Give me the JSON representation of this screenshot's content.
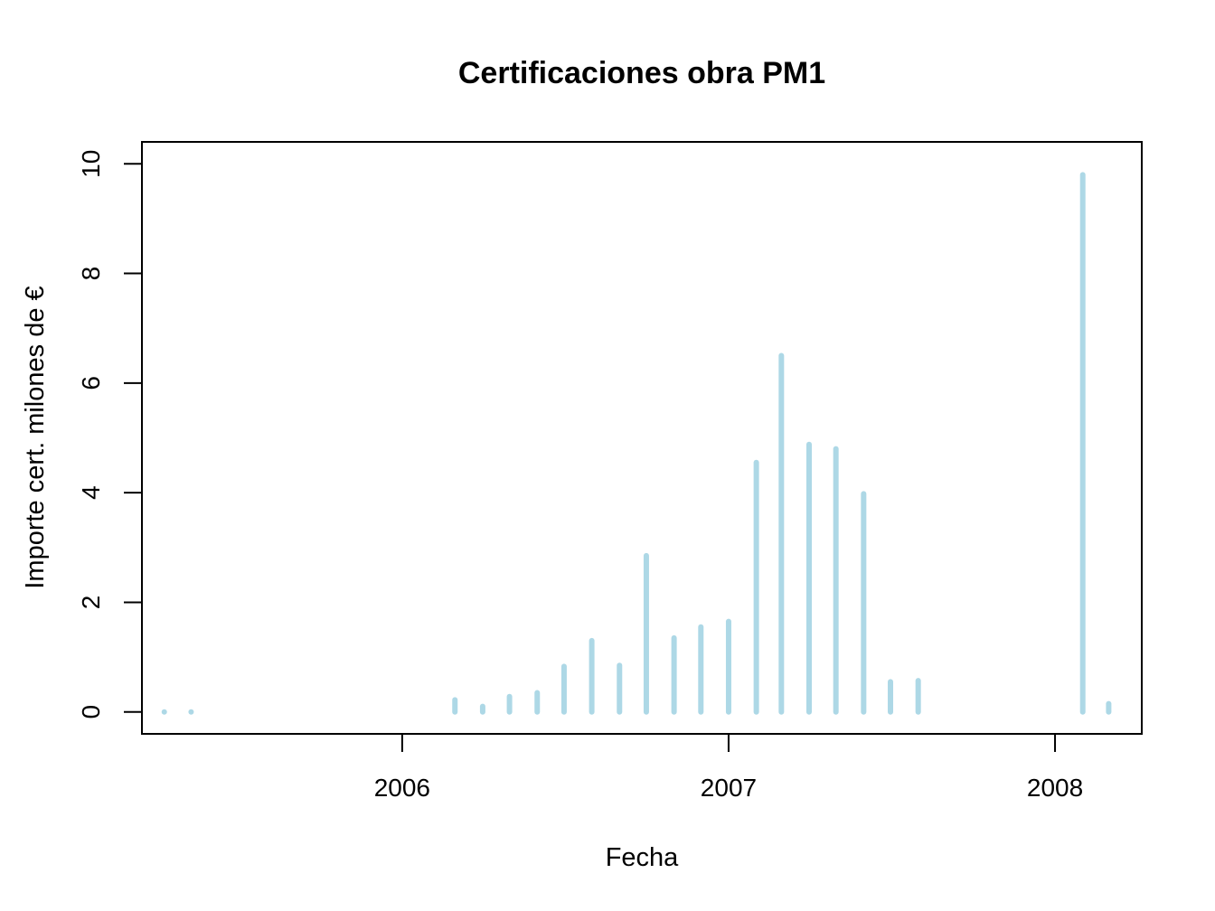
{
  "chart_data": {
    "type": "bar",
    "title": "Certificaciones obra PM1",
    "xlabel": "Fecha",
    "ylabel": "Importe cert. milones de €",
    "x_scale": "date",
    "xlim": [
      "2005-03-16",
      "2008-04-07"
    ],
    "ylim": [
      -0.4,
      10.4
    ],
    "x_ticks": [
      "2006-01-01",
      "2007-01-01",
      "2008-01-01"
    ],
    "x_tick_labels": [
      "2006",
      "2007",
      "2008"
    ],
    "y_ticks": [
      0,
      2,
      4,
      6,
      8,
      10
    ],
    "y_tick_labels": [
      "0",
      "2",
      "4",
      "6",
      "8",
      "10"
    ],
    "grid": false,
    "bar_color": "#add8e6",
    "axis_color": "#000000",
    "x": [
      "2005-04-10",
      "2005-05-10",
      "2006-03-01",
      "2006-04-01",
      "2006-05-01",
      "2006-06-01",
      "2006-07-01",
      "2006-08-01",
      "2006-09-01",
      "2006-10-01",
      "2006-11-01",
      "2006-12-01",
      "2007-01-01",
      "2007-02-01",
      "2007-03-01",
      "2007-04-01",
      "2007-05-01",
      "2007-06-01",
      "2007-07-01",
      "2007-08-01",
      "2008-02-01",
      "2008-03-01"
    ],
    "values": [
      0.0,
      0.0,
      0.22,
      0.1,
      0.28,
      0.35,
      0.83,
      1.3,
      0.85,
      2.85,
      1.35,
      1.55,
      1.65,
      4.55,
      6.5,
      4.88,
      4.8,
      3.98,
      0.55,
      0.57,
      9.8,
      0.15
    ]
  }
}
